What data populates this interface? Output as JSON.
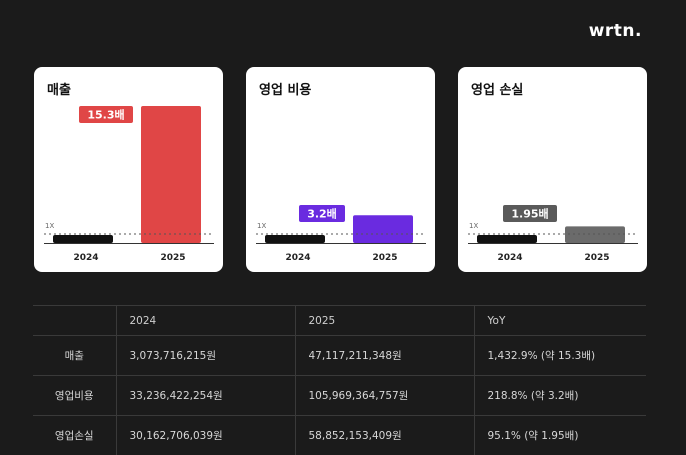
{
  "brand": {
    "logo_text": "wrtn."
  },
  "chart_data": [
    {
      "type": "bar",
      "title": "매출",
      "categories": [
        "2024",
        "2025"
      ],
      "values": [
        3073716215,
        47117211348
      ],
      "baseline_label": "1X",
      "annotation": "15.3배",
      "colors": [
        "#111111",
        "#e04646"
      ],
      "annotation_color": "#e04646"
    },
    {
      "type": "bar",
      "title": "영업 비용",
      "categories": [
        "2024",
        "2025"
      ],
      "values": [
        33236422254,
        105969364757
      ],
      "baseline_label": "1X",
      "annotation": "3.2배",
      "colors": [
        "#111111",
        "#6a2be0"
      ],
      "annotation_color": "#6a2be0"
    },
    {
      "type": "bar",
      "title": "영업 손실",
      "categories": [
        "2024",
        "2025"
      ],
      "values": [
        30162706039,
        58852153409
      ],
      "baseline_label": "1X",
      "annotation": "1.95배",
      "colors": [
        "#111111",
        "#6b6b6b"
      ],
      "annotation_color": "#5a5a5a"
    }
  ],
  "table": {
    "headers": [
      "",
      "2024",
      "2025",
      "YoY"
    ],
    "rows": [
      {
        "label": "매출",
        "v2024": "3,073,716,215원",
        "v2025": "47,117,211,348원",
        "yoy": "1,432.9% (약 15.3배)"
      },
      {
        "label": "영업비용",
        "v2024": "33,236,422,254원",
        "v2025": "105,969,364,757원",
        "yoy": "218.8% (약 3.2배)"
      },
      {
        "label": "영업손실",
        "v2024": "30,162,706,039원",
        "v2025": "58,852,153,409원",
        "yoy": "95.1% (약 1.95배)"
      }
    ]
  }
}
